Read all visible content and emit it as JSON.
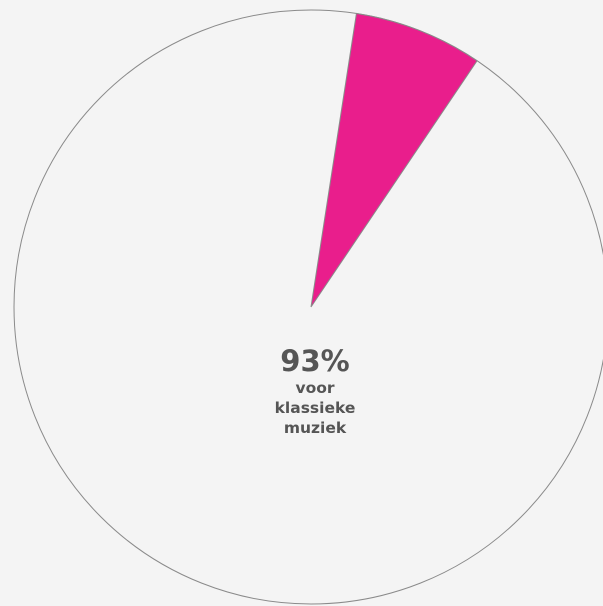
{
  "chart_data": {
    "type": "pie",
    "title": "",
    "slices": [
      {
        "value": 93,
        "color": "#f4f4f4"
      },
      {
        "value": 7,
        "color": "#e91e8c"
      }
    ],
    "label": {
      "percent": "93%",
      "text_line1": "voor",
      "text_line2": "klassieke",
      "text_line3": "muziek"
    },
    "outline_color": "#8a8a8a"
  }
}
